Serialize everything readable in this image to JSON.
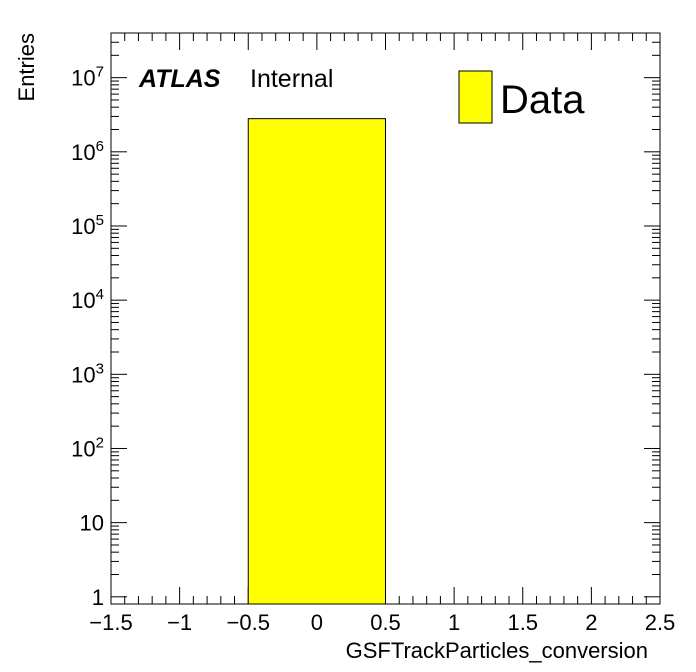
{
  "chart_data": {
    "type": "bar",
    "title": "",
    "xlabel": "GSFTrackParticles_conversion",
    "ylabel": "Entries",
    "xlim": [
      -1.5,
      2.5
    ],
    "ylim": [
      0.8,
      40000000
    ],
    "y_scale": "log",
    "x_ticks": [
      -1.5,
      -1,
      -0.5,
      0,
      0.5,
      1,
      1.5,
      2,
      2.5
    ],
    "x_tick_labels": [
      "−1.5",
      "−1",
      "−0.5",
      "0",
      "0.5",
      "1",
      "1.5",
      "2",
      "2.5"
    ],
    "y_ticks": [
      {
        "value": 1,
        "base": "1",
        "exp": ""
      },
      {
        "value": 10,
        "base": "10",
        "exp": ""
      },
      {
        "value": 100,
        "base": "10",
        "exp": "2"
      },
      {
        "value": 1000,
        "base": "10",
        "exp": "3"
      },
      {
        "value": 10000,
        "base": "10",
        "exp": "4"
      },
      {
        "value": 100000,
        "base": "10",
        "exp": "5"
      },
      {
        "value": 1000000,
        "base": "10",
        "exp": "6"
      },
      {
        "value": 10000000,
        "base": "10",
        "exp": "7"
      }
    ],
    "grid": false,
    "legend_position": "top-right",
    "series": [
      {
        "name": "Data",
        "color": "#ffff00",
        "bins": [
          {
            "x_low": -0.5,
            "x_high": 0.5,
            "value": 2800000
          }
        ]
      }
    ],
    "annotations": {
      "experiment": "ATLAS",
      "status": "Internal"
    }
  }
}
